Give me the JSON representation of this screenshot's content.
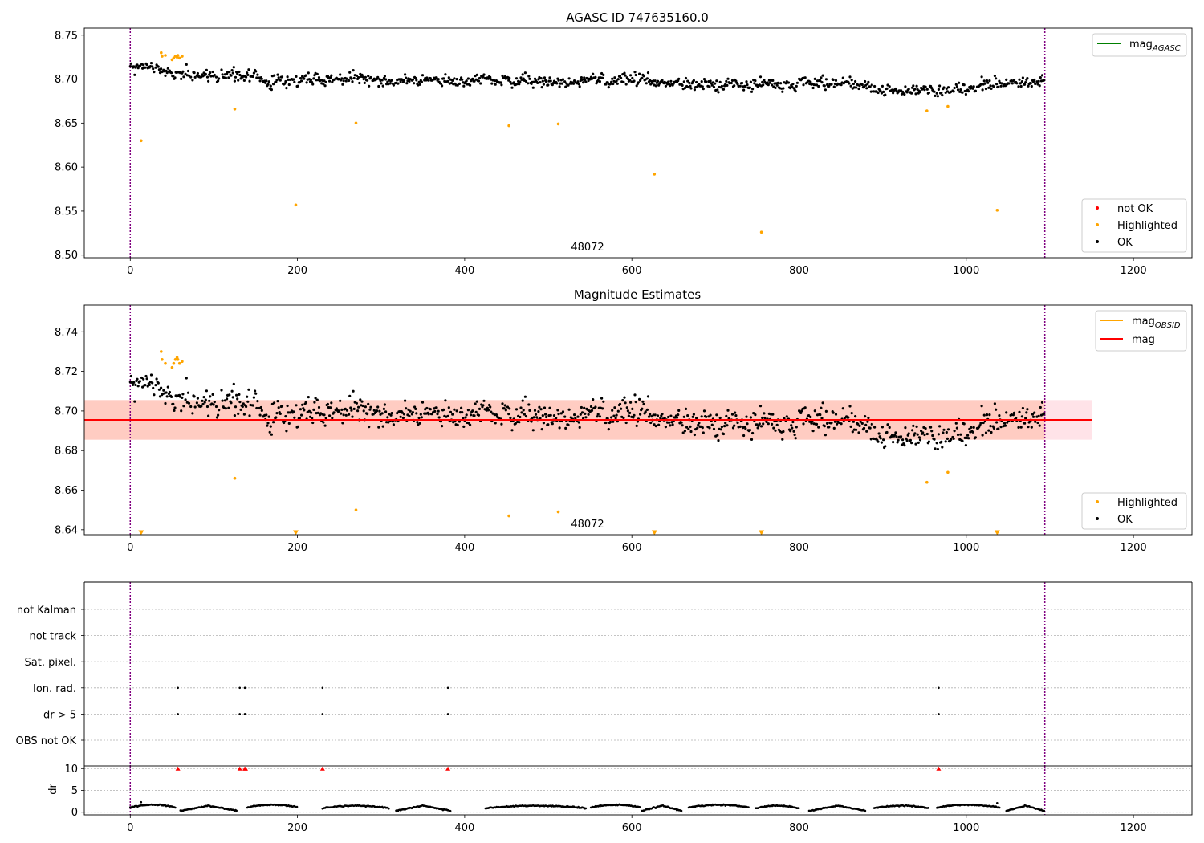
{
  "chart_data": [
    {
      "type": "scatter",
      "title": "AGASC ID 747635160.0",
      "xlabel": "",
      "ylabel": "",
      "xlim": [
        -55,
        1270
      ],
      "ylim": [
        8.497,
        8.758
      ],
      "xticks": [
        0,
        200,
        400,
        600,
        800,
        1000,
        1200
      ],
      "xtick_labels": [
        "0",
        "200",
        "400",
        "600",
        "800",
        "1000",
        "1200"
      ],
      "yticks": [
        8.5,
        8.55,
        8.6,
        8.65,
        8.7,
        8.75
      ],
      "ytick_labels": [
        "8.50",
        "8.55",
        "8.60",
        "8.65",
        "8.70",
        "8.75"
      ],
      "obsid_label": {
        "text": "48072",
        "x": 545
      },
      "vlines": [
        0,
        1094
      ],
      "vline_color": "#800080",
      "lines": [
        {
          "name": "mag_AGASC",
          "y": 8.7,
          "color": "#008000",
          "label_main": "mag",
          "label_sub": "AGASC"
        }
      ],
      "series": [
        {
          "name": "not OK",
          "color": "#ff0000",
          "x": [],
          "y": []
        },
        {
          "name": "Highlighted",
          "color": "#ffa500",
          "x": [
            13,
            37,
            38,
            42,
            50,
            52,
            54,
            56,
            57,
            59,
            62,
            125,
            198,
            270,
            453,
            512,
            627,
            755,
            953,
            978,
            1037
          ],
          "y": [
            8.63,
            8.73,
            8.726,
            8.727,
            8.722,
            8.724,
            8.726,
            8.725,
            8.727,
            8.724,
            8.726,
            8.666,
            8.557,
            8.65,
            8.647,
            8.649,
            8.592,
            8.526,
            8.664,
            8.669,
            8.551
          ]
        },
        {
          "name": "OK",
          "color": "#000000",
          "generated": "ok_points_top",
          "x": [],
          "y": []
        }
      ],
      "legend": [
        {
          "label": "not OK",
          "color": "#ff0000"
        },
        {
          "label": "Highlighted",
          "color": "#ffa500"
        },
        {
          "label": "OK",
          "color": "#000000"
        }
      ],
      "legend_position": "lower-right",
      "line_legend_position": "upper-right",
      "ok_profile": [
        [
          0,
          8.712
        ],
        [
          60,
          8.708
        ],
        [
          200,
          8.697
        ],
        [
          260,
          8.703
        ],
        [
          300,
          8.699
        ],
        [
          400,
          8.697
        ],
        [
          500,
          8.696
        ],
        [
          600,
          8.699
        ],
        [
          700,
          8.692
        ],
        [
          800,
          8.697
        ],
        [
          900,
          8.688
        ],
        [
          1000,
          8.688
        ],
        [
          1050,
          8.697
        ],
        [
          1094,
          8.696
        ]
      ]
    },
    {
      "type": "scatter",
      "title": "Magnitude Estimates",
      "xlabel": "",
      "ylabel": "",
      "xlim": [
        -55,
        1270
      ],
      "ylim": [
        8.6375,
        8.7535
      ],
      "xticks": [
        0,
        200,
        400,
        600,
        800,
        1000,
        1200
      ],
      "xtick_labels": [
        "0",
        "200",
        "400",
        "600",
        "800",
        "1000",
        "1200"
      ],
      "yticks": [
        8.64,
        8.66,
        8.68,
        8.7,
        8.72,
        8.74
      ],
      "ytick_labels": [
        "8.64",
        "8.66",
        "8.68",
        "8.70",
        "8.72",
        "8.74"
      ],
      "obsid_label": {
        "text": "48072",
        "x": 545
      },
      "vlines": [
        0,
        1094
      ],
      "vline_color": "#800080",
      "band": {
        "x0": -55,
        "x1": 1150,
        "y0": 8.6855,
        "y1": 8.7055,
        "color": "#ffc0cb",
        "opacity": 0.45
      },
      "mag_line": {
        "x0": -55,
        "x1": 1150,
        "y": 8.6955,
        "color": "#ff0000"
      },
      "obsid_band": {
        "x0": -55,
        "x1": 1094,
        "y0": 8.6855,
        "y1": 8.7055,
        "color": "#ffa07a",
        "opacity": 0.35
      },
      "obsid_line": {
        "x0": -55,
        "x1": 1094,
        "y": 8.6955,
        "color": "#ffa500"
      },
      "lines": [
        {
          "name": "mag_OBSID",
          "color": "#ffa500",
          "label_main": "mag",
          "label_sub": "OBSID"
        },
        {
          "name": "mag",
          "color": "#ff0000",
          "label_main": "mag",
          "label_sub": ""
        }
      ],
      "series": [
        {
          "name": "Highlighted",
          "color": "#ffa500",
          "x": [
            37,
            38,
            42,
            50,
            52,
            54,
            56,
            57,
            59,
            62,
            125,
            270,
            453,
            512,
            953,
            978
          ],
          "y": [
            8.73,
            8.726,
            8.724,
            8.722,
            8.724,
            8.726,
            8.727,
            8.726,
            8.724,
            8.725,
            8.666,
            8.65,
            8.647,
            8.649,
            8.664,
            8.669
          ]
        },
        {
          "name": "Highlighted (below range)",
          "color": "#ffa500",
          "marker": "triangle-down",
          "x": [
            13,
            198,
            627,
            755,
            1037
          ],
          "y": [
            8.6385,
            8.6385,
            8.6385,
            8.6385,
            8.6385
          ]
        },
        {
          "name": "OK",
          "color": "#000000",
          "generated": "ok_points_mid",
          "x": [],
          "y": []
        }
      ],
      "legend": [
        {
          "label": "Highlighted",
          "color": "#ffa500"
        },
        {
          "label": "OK",
          "color": "#000000"
        }
      ],
      "legend_position": "lower-right",
      "line_legend_position": "upper-right"
    },
    {
      "type": "scatter",
      "title": "",
      "xlabel": "",
      "ylabel": "",
      "xlim": [
        -55,
        1270
      ],
      "vlines": [
        0,
        1094
      ],
      "vline_color": "#800080",
      "flag_rows": [
        "not Kalman",
        "not track",
        "Sat. pixel.",
        "Ion. rad.",
        "dr > 5",
        "OBS not OK"
      ],
      "flag_points": [
        {
          "row": "Ion. rad.",
          "x": [
            57,
            131,
            137,
            138,
            230,
            380,
            967
          ]
        },
        {
          "row": "dr > 5",
          "x": [
            57,
            131,
            137,
            138,
            230,
            380,
            967
          ]
        }
      ]
    },
    {
      "type": "scatter",
      "title": "",
      "xlabel": "",
      "ylabel": "dr",
      "xlim": [
        -55,
        1270
      ],
      "ylim": [
        -0.6,
        10.6
      ],
      "xticks": [
        0,
        200,
        400,
        600,
        800,
        1000,
        1200
      ],
      "xtick_labels": [
        "0",
        "200",
        "400",
        "600",
        "800",
        "1000",
        "1200"
      ],
      "yticks": [
        0,
        5,
        10
      ],
      "ytick_labels": [
        "0",
        "5",
        "10"
      ],
      "vlines": [
        0,
        1094
      ],
      "vline_color": "#800080",
      "series": [
        {
          "name": "dr (clipped)",
          "color": "#ff0000",
          "marker": "triangle-up",
          "x": [
            57,
            131,
            137,
            138,
            230,
            380,
            967
          ],
          "y": [
            10,
            10,
            10,
            10,
            10,
            10,
            10
          ]
        },
        {
          "name": "dr",
          "color": "#000000",
          "generated": "dr_points",
          "x": [],
          "y": []
        }
      ]
    }
  ]
}
